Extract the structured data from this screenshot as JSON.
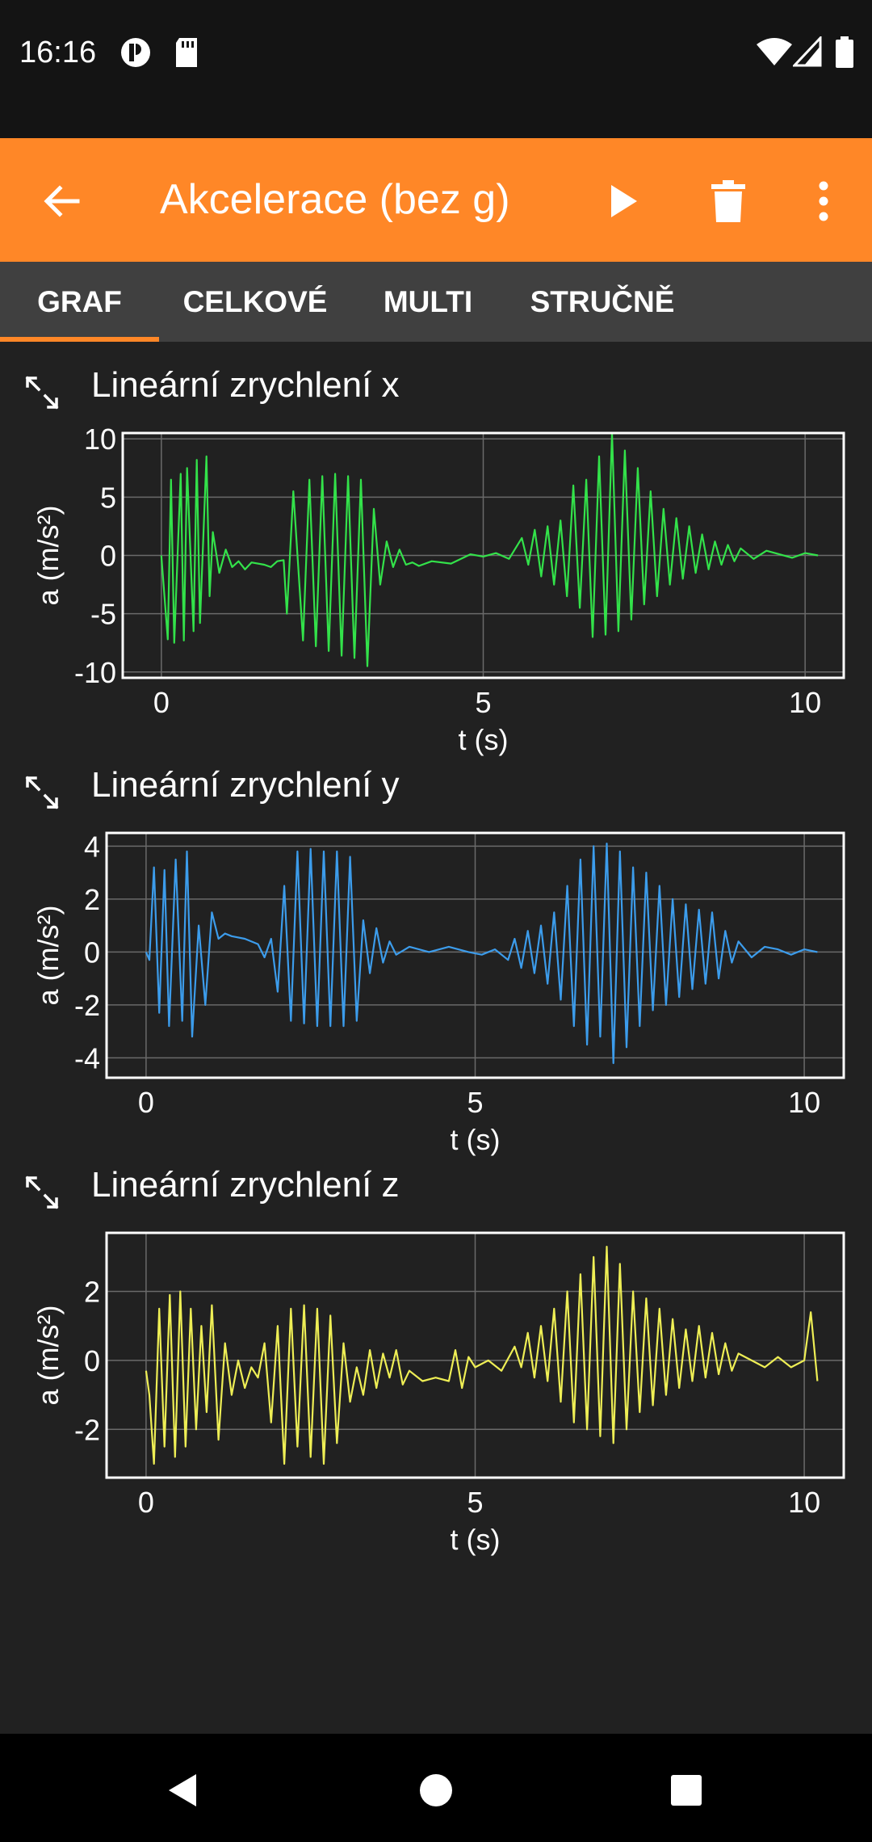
{
  "status_bar": {
    "time": "16:16"
  },
  "app_bar": {
    "title": "Akcelerace (bez g)"
  },
  "tabs": [
    {
      "label": "GRAF",
      "active": true
    },
    {
      "label": "CELKOVÉ",
      "active": false
    },
    {
      "label": "MULTI",
      "active": false
    },
    {
      "label": "STRUČNĚ",
      "active": false
    }
  ],
  "colors": {
    "accent": "#FF8727",
    "x_series": "#33E24A",
    "y_series": "#3C9CEB",
    "z_series": "#EEEE55"
  },
  "plots": [
    {
      "title": "Lineární zrychlení x"
    },
    {
      "title": "Lineární zrychlení y"
    },
    {
      "title": "Lineární zrychlení z"
    }
  ],
  "chart_data": [
    {
      "type": "line",
      "title": "Lineární zrychlení x",
      "xlabel": "t (s)",
      "ylabel": "a (m/s²)",
      "xlim": [
        -0.6,
        10.6
      ],
      "ylim": [
        -10.5,
        10.5
      ],
      "xticks": [
        0,
        5,
        10
      ],
      "yticks": [
        -10,
        -5,
        0,
        5,
        10
      ],
      "grid": true,
      "series": [
        {
          "color": "#33E24A",
          "x": [
            0.0,
            0.1,
            0.15,
            0.2,
            0.3,
            0.35,
            0.4,
            0.5,
            0.55,
            0.6,
            0.7,
            0.75,
            0.8,
            0.9,
            1.0,
            1.1,
            1.2,
            1.3,
            1.4,
            1.6,
            1.7,
            1.8,
            1.9,
            1.95,
            2.05,
            2.2,
            2.3,
            2.4,
            2.5,
            2.6,
            2.7,
            2.8,
            2.9,
            3.0,
            3.1,
            3.2,
            3.3,
            3.4,
            3.5,
            3.6,
            3.7,
            3.8,
            3.9,
            4.0,
            4.2,
            4.5,
            4.8,
            5.0,
            5.2,
            5.4,
            5.6,
            5.7,
            5.8,
            5.9,
            6.0,
            6.1,
            6.2,
            6.3,
            6.4,
            6.5,
            6.6,
            6.7,
            6.8,
            6.9,
            7.0,
            7.1,
            7.2,
            7.3,
            7.4,
            7.5,
            7.6,
            7.7,
            7.8,
            7.9,
            8.0,
            8.1,
            8.2,
            8.3,
            8.4,
            8.5,
            8.6,
            8.7,
            8.8,
            8.9,
            9.0,
            9.2,
            9.4,
            9.6,
            9.8,
            10.0,
            10.2
          ],
          "y": [
            0.0,
            -7.2,
            6.5,
            -7.5,
            7.0,
            -7.3,
            7.5,
            -6.5,
            8.2,
            -5.8,
            8.5,
            -3.5,
            2.0,
            -1.5,
            0.5,
            -1.0,
            -0.5,
            -1.2,
            -0.6,
            -0.8,
            -1.0,
            -0.5,
            -0.4,
            -5.0,
            5.5,
            -7.3,
            6.5,
            -7.8,
            6.8,
            -8.2,
            7.0,
            -8.6,
            6.8,
            -8.8,
            6.5,
            -9.5,
            4.0,
            -2.5,
            1.2,
            -1.0,
            0.5,
            -0.8,
            -0.6,
            -0.9,
            -0.5,
            -0.7,
            0.1,
            -0.1,
            0.2,
            -0.3,
            1.5,
            -0.8,
            2.2,
            -1.8,
            2.5,
            -2.5,
            3.0,
            -3.5,
            6.0,
            -4.5,
            6.5,
            -7.0,
            8.5,
            -6.8,
            10.5,
            -6.5,
            9.0,
            -5.5,
            7.5,
            -4.2,
            5.5,
            -3.5,
            4.0,
            -2.5,
            3.2,
            -2.0,
            2.5,
            -1.5,
            1.8,
            -1.2,
            1.2,
            -0.8,
            0.9,
            -0.5,
            0.6,
            -0.3,
            0.4,
            0.1,
            -0.2,
            0.2,
            0.0
          ]
        }
      ]
    },
    {
      "type": "line",
      "title": "Lineární zrychlení y",
      "xlabel": "t (s)",
      "ylabel": "a (m/s²)",
      "xlim": [
        -0.6,
        10.6
      ],
      "ylim": [
        -4.75,
        4.5
      ],
      "xticks": [
        0,
        5,
        10
      ],
      "yticks": [
        -4,
        -2,
        0,
        2,
        4
      ],
      "grid": true,
      "series": [
        {
          "color": "#3C9CEB",
          "x": [
            0.0,
            0.05,
            0.12,
            0.2,
            0.28,
            0.35,
            0.45,
            0.55,
            0.62,
            0.7,
            0.8,
            0.9,
            1.0,
            1.1,
            1.2,
            1.3,
            1.5,
            1.7,
            1.8,
            1.9,
            2.0,
            2.1,
            2.2,
            2.3,
            2.4,
            2.5,
            2.6,
            2.7,
            2.8,
            2.9,
            3.0,
            3.1,
            3.2,
            3.3,
            3.4,
            3.5,
            3.6,
            3.7,
            3.8,
            4.0,
            4.3,
            4.6,
            4.9,
            5.1,
            5.3,
            5.5,
            5.6,
            5.7,
            5.8,
            5.9,
            6.0,
            6.1,
            6.2,
            6.3,
            6.4,
            6.5,
            6.6,
            6.7,
            6.8,
            6.9,
            7.0,
            7.1,
            7.2,
            7.3,
            7.4,
            7.5,
            7.6,
            7.7,
            7.8,
            7.9,
            8.0,
            8.1,
            8.2,
            8.3,
            8.4,
            8.5,
            8.6,
            8.7,
            8.8,
            8.9,
            9.0,
            9.2,
            9.4,
            9.6,
            9.8,
            10.0,
            10.2
          ],
          "y": [
            0.0,
            -0.3,
            3.2,
            -2.3,
            3.1,
            -2.8,
            3.5,
            -2.6,
            3.8,
            -3.2,
            1.0,
            -2.0,
            1.5,
            0.5,
            0.7,
            0.6,
            0.5,
            0.3,
            -0.2,
            0.5,
            -1.5,
            2.5,
            -2.6,
            3.8,
            -2.7,
            3.9,
            -2.8,
            3.8,
            -2.8,
            3.8,
            -2.8,
            3.6,
            -2.6,
            1.2,
            -0.8,
            0.9,
            -0.4,
            0.4,
            -0.1,
            0.2,
            0.0,
            0.2,
            0.0,
            -0.1,
            0.1,
            -0.3,
            0.5,
            -0.6,
            0.8,
            -0.8,
            1.0,
            -1.2,
            1.5,
            -1.8,
            2.5,
            -2.8,
            3.5,
            -3.5,
            4.0,
            -3.2,
            4.1,
            -4.2,
            3.8,
            -3.6,
            3.2,
            -2.8,
            3.0,
            -2.2,
            2.5,
            -2.0,
            2.0,
            -1.7,
            1.8,
            -1.4,
            1.6,
            -1.2,
            1.5,
            -1.0,
            0.8,
            -0.4,
            0.4,
            -0.2,
            0.2,
            0.1,
            -0.1,
            0.1,
            0.0
          ]
        }
      ]
    },
    {
      "type": "line",
      "title": "Lineární zrychlení z",
      "xlabel": "t (s)",
      "ylabel": "a (m/s²)",
      "xlim": [
        -0.6,
        10.6
      ],
      "ylim": [
        -3.4,
        3.7
      ],
      "xticks": [
        0,
        5,
        10
      ],
      "yticks": [
        -2,
        0,
        2
      ],
      "grid": true,
      "series": [
        {
          "color": "#EEEE55",
          "x": [
            0.0,
            0.05,
            0.12,
            0.2,
            0.28,
            0.36,
            0.44,
            0.52,
            0.6,
            0.68,
            0.76,
            0.84,
            0.92,
            1.0,
            1.1,
            1.2,
            1.3,
            1.4,
            1.5,
            1.6,
            1.7,
            1.8,
            1.9,
            2.0,
            2.1,
            2.2,
            2.3,
            2.4,
            2.5,
            2.6,
            2.7,
            2.8,
            2.9,
            3.0,
            3.1,
            3.2,
            3.3,
            3.4,
            3.5,
            3.6,
            3.7,
            3.8,
            3.9,
            4.0,
            4.2,
            4.4,
            4.6,
            4.7,
            4.8,
            4.9,
            5.0,
            5.2,
            5.4,
            5.6,
            5.7,
            5.8,
            5.9,
            6.0,
            6.1,
            6.2,
            6.3,
            6.4,
            6.5,
            6.6,
            6.7,
            6.8,
            6.9,
            7.0,
            7.1,
            7.2,
            7.3,
            7.4,
            7.5,
            7.6,
            7.7,
            7.8,
            7.9,
            8.0,
            8.1,
            8.2,
            8.3,
            8.4,
            8.5,
            8.6,
            8.7,
            8.8,
            8.9,
            9.0,
            9.2,
            9.4,
            9.6,
            9.8,
            10.0,
            10.1,
            10.2
          ],
          "y": [
            -0.3,
            -1.0,
            -3.0,
            1.5,
            -2.5,
            1.9,
            -2.8,
            2.0,
            -2.5,
            1.5,
            -2.0,
            1.0,
            -1.5,
            1.6,
            -2.3,
            0.5,
            -1.0,
            0.0,
            -0.8,
            -0.2,
            -0.5,
            0.5,
            -1.8,
            1.0,
            -3.0,
            1.5,
            -2.5,
            1.6,
            -2.8,
            1.5,
            -3.0,
            1.3,
            -2.4,
            0.5,
            -1.2,
            -0.2,
            -1.0,
            0.3,
            -0.8,
            0.2,
            -0.5,
            0.3,
            -0.7,
            -0.3,
            -0.6,
            -0.5,
            -0.6,
            0.3,
            -0.8,
            0.1,
            -0.2,
            0.0,
            -0.3,
            0.4,
            -0.2,
            0.8,
            -0.5,
            1.0,
            -0.6,
            1.5,
            -1.2,
            2.0,
            -1.8,
            2.5,
            -2.0,
            3.0,
            -2.2,
            3.3,
            -2.4,
            2.8,
            -2.0,
            2.0,
            -1.5,
            1.8,
            -1.3,
            1.5,
            -1.0,
            1.2,
            -0.8,
            0.9,
            -0.6,
            1.0,
            -0.5,
            0.8,
            -0.4,
            0.5,
            -0.3,
            0.2,
            0.0,
            -0.2,
            0.1,
            -0.2,
            0.0,
            1.4,
            -0.6
          ]
        }
      ]
    }
  ]
}
